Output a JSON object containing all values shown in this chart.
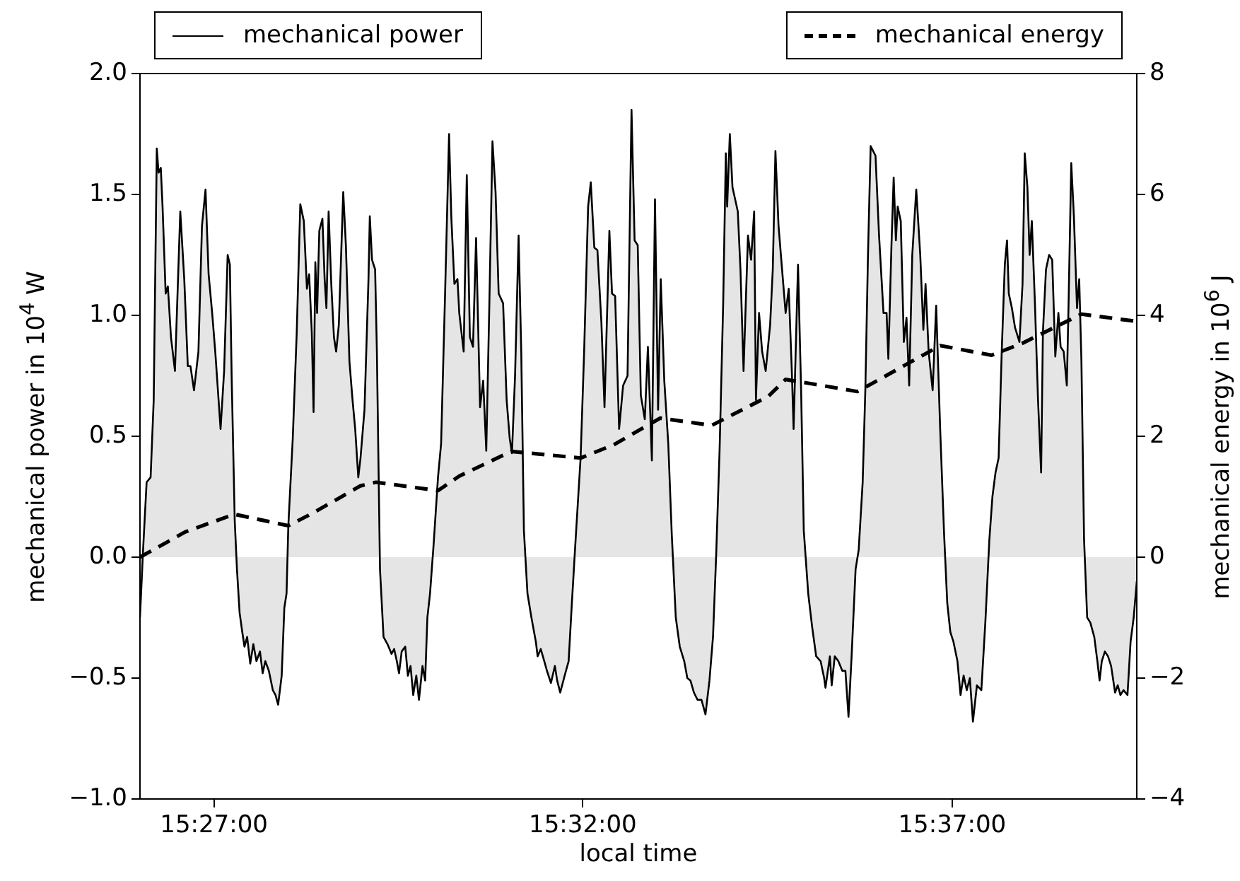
{
  "chart_data": {
    "type": "area",
    "xlabel": "local time",
    "ylabel": "mechanical power in 10$^{4}$ W",
    "y2label": "mechanical energy in 10$^{6}$ J",
    "legend": "top",
    "xlim": [
      15.4333,
      15.6584
    ],
    "xticks": [
      {
        "value": 15.45,
        "label": "15:27:00"
      },
      {
        "value": 15.5333,
        "label": "15:32:00"
      },
      {
        "value": 15.6167,
        "label": "15:37:00"
      }
    ],
    "ylim": [
      -1,
      2
    ],
    "yticks": [
      {
        "value": -1,
        "label": "−1.0"
      },
      {
        "value": -0.5,
        "label": "−0.5"
      },
      {
        "value": 0,
        "label": "0.0"
      },
      {
        "value": 0.5,
        "label": "0.5"
      },
      {
        "value": 1,
        "label": "1.0"
      },
      {
        "value": 1.5,
        "label": "1.5"
      },
      {
        "value": 2,
        "label": "2.0"
      }
    ],
    "y2lim": [
      -4,
      8
    ],
    "y2ticks": [
      {
        "value": -4,
        "label": "−4"
      },
      {
        "value": -2,
        "label": "−2"
      },
      0,
      2,
      4,
      6,
      8
    ],
    "series": [
      {
        "name": "mechanical power",
        "color": "#000000",
        "line_style": "solid",
        "x": [
          15.4333,
          15.434,
          15.4348,
          15.4357,
          15.4364,
          15.4371,
          15.4375,
          15.438,
          15.4384,
          15.4391,
          15.4396,
          15.4403,
          15.4412,
          15.4424,
          15.4433,
          15.4441,
          15.4447,
          15.4455,
          15.4465,
          15.4473,
          15.4481,
          15.4488,
          15.4496,
          15.4503,
          15.4509,
          15.4515,
          15.4523,
          15.4531,
          15.4536,
          15.454,
          15.4547,
          15.4552,
          15.4558,
          15.4564,
          15.4569,
          15.4575,
          15.4582,
          15.4589,
          15.4596,
          15.4604,
          15.461,
          15.4616,
          15.4624,
          15.4633,
          15.4639,
          15.4645,
          15.4653,
          15.4659,
          15.4664,
          15.4668,
          15.4678,
          15.4687,
          15.4695,
          15.4703,
          15.471,
          15.4715,
          15.4721,
          15.4725,
          15.4729,
          15.4733,
          15.4738,
          15.4745,
          15.475,
          15.4754,
          15.4759,
          15.4765,
          15.4771,
          15.4776,
          15.4782,
          15.4792,
          15.4798,
          15.4806,
          15.4813,
          15.4819,
          15.4826,
          15.4831,
          15.484,
          15.4849,
          15.4852,
          15.4857,
          15.4864,
          15.4868,
          15.4875,
          15.4883,
          15.4892,
          15.4901,
          15.4907,
          15.4913,
          15.4918,
          15.4924,
          15.4932,
          15.4938,
          15.4944,
          15.495,
          15.4957,
          15.4963,
          15.4971,
          15.4977,
          15.4982,
          15.4988,
          15.4996,
          15.5006,
          15.5013,
          15.5022,
          15.5031,
          15.5036,
          15.5043,
          15.505,
          15.5054,
          15.5064,
          15.5071,
          15.5078,
          15.5085,
          15.5092,
          15.5101,
          15.5108,
          15.5115,
          15.5122,
          15.5129,
          15.5136,
          15.5143,
          15.5153,
          15.5161,
          15.5168,
          15.5173,
          15.518,
          15.5188,
          15.5194,
          15.52,
          15.5208,
          15.5217,
          15.5227,
          15.5231,
          15.5238,
          15.5246,
          15.5252,
          15.5261,
          15.527,
          15.5275,
          15.5282,
          15.5292,
          15.5301,
          15.5308,
          15.5316,
          15.5328,
          15.5336,
          15.5345,
          15.5351,
          15.5359,
          15.5366,
          15.5375,
          15.5382,
          15.5393,
          15.5399,
          15.5406,
          15.5415,
          15.5424,
          15.5434,
          15.5443,
          15.545,
          15.5457,
          15.5464,
          15.5473,
          15.548,
          15.5489,
          15.5496,
          15.5503,
          15.5509,
          15.5517,
          15.5526,
          15.5534,
          15.5543,
          15.5552,
          15.5562,
          15.5569,
          15.5576,
          15.5584,
          15.5592,
          15.5601,
          15.561,
          15.5619,
          15.5627,
          15.5634,
          15.5642,
          15.565,
          15.5656,
          15.5659,
          15.5665,
          15.5671,
          15.5683,
          15.5689,
          15.5696,
          15.5706,
          15.5713,
          15.572,
          15.5724,
          15.5731,
          15.5738,
          15.5746,
          15.5756,
          15.5762,
          15.5768,
          15.5775,
          15.5783,
          15.5791,
          15.5798,
          15.5805,
          15.5809,
          15.5819,
          15.5826,
          15.5832,
          15.5842,
          15.5851,
          15.586,
          15.587,
          15.5878,
          15.5881,
          15.5891,
          15.5895,
          15.5902,
          15.591,
          15.5919,
          15.5926,
          15.5933,
          15.594,
          15.5949,
          15.5956,
          15.5965,
          15.5971,
          15.5977,
          15.5983,
          15.5994,
          15.6002,
          15.6012,
          15.6019,
          15.6023,
          15.603,
          15.6035,
          15.604,
          15.6044,
          15.6051,
          15.6058,
          15.6064,
          15.607,
          15.6077,
          15.6086,
          15.6095,
          15.6102,
          15.6107,
          15.6114,
          15.6123,
          15.6131,
          15.614,
          15.6149,
          15.6156,
          15.6163,
          15.617,
          15.6179,
          15.6186,
          15.6193,
          15.62,
          15.6207,
          15.6214,
          15.6223,
          15.6233,
          15.6242,
          15.6251,
          15.6258,
          15.6265,
          15.6272,
          15.6279,
          15.6286,
          15.6291,
          15.6295,
          15.6302,
          15.6309,
          15.6319,
          15.6326,
          15.6331,
          15.6337,
          15.6342,
          15.6347,
          15.6354,
          15.6361,
          15.6368,
          15.6372,
          15.6379,
          15.6386,
          15.6393,
          15.64,
          15.6407,
          15.6412,
          15.6419,
          15.6426,
          15.643,
          15.6436,
          15.6442,
          15.6449,
          15.6454,
          15.6459,
          15.6465,
          15.6472,
          15.6479,
          15.6488,
          15.6495,
          15.65,
          15.6505,
          15.6512,
          15.6519,
          15.6526,
          15.6535,
          15.6541,
          15.6547,
          15.6554,
          15.6563,
          15.657,
          15.6577,
          15.6584
        ],
        "values": [
          -0.25,
          0.03,
          0.31,
          0.33,
          0.65,
          1.69,
          1.59,
          1.61,
          1.45,
          1.09,
          1.12,
          0.91,
          0.77,
          1.43,
          1.15,
          0.79,
          0.79,
          0.69,
          0.85,
          1.37,
          1.52,
          1.17,
          1.01,
          0.85,
          0.69,
          0.53,
          0.77,
          1.25,
          1.21,
          0.75,
          0.15,
          -0.05,
          -0.23,
          -0.31,
          -0.37,
          -0.33,
          -0.44,
          -0.36,
          -0.43,
          -0.39,
          -0.48,
          -0.43,
          -0.47,
          -0.55,
          -0.57,
          -0.61,
          -0.49,
          -0.21,
          -0.15,
          0.13,
          0.49,
          0.93,
          1.46,
          1.39,
          1.11,
          1.17,
          0.93,
          0.6,
          1.22,
          1.01,
          1.35,
          1.4,
          1.15,
          1.03,
          1.43,
          1.13,
          0.91,
          0.85,
          0.96,
          1.51,
          1.29,
          0.81,
          0.65,
          0.53,
          0.33,
          0.41,
          0.61,
          1.15,
          1.41,
          1.23,
          1.19,
          0.85,
          -0.05,
          -0.33,
          -0.36,
          -0.4,
          -0.38,
          -0.43,
          -0.48,
          -0.39,
          -0.37,
          -0.49,
          -0.45,
          -0.57,
          -0.49,
          -0.59,
          -0.45,
          -0.51,
          -0.25,
          -0.15,
          0.05,
          0.33,
          0.47,
          1.09,
          1.75,
          1.41,
          1.13,
          1.15,
          1.01,
          0.85,
          1.58,
          0.91,
          0.87,
          1.32,
          0.62,
          0.73,
          0.44,
          1.05,
          1.72,
          1.51,
          1.09,
          1.05,
          0.65,
          0.49,
          0.43,
          0.75,
          1.33,
          0.85,
          0.11,
          -0.15,
          -0.25,
          -0.35,
          -0.41,
          -0.38,
          -0.43,
          -0.47,
          -0.52,
          -0.45,
          -0.51,
          -0.56,
          -0.49,
          -0.43,
          -0.2,
          0.05,
          0.41,
          0.85,
          1.45,
          1.55,
          1.28,
          1.27,
          0.97,
          0.62,
          1.35,
          1.09,
          1.08,
          0.53,
          0.71,
          0.75,
          1.85,
          1.31,
          1.29,
          0.67,
          0.57,
          0.87,
          0.4,
          1.48,
          0.61,
          1.15,
          0.73,
          0.47,
          0.09,
          -0.25,
          -0.37,
          -0.43,
          -0.5,
          -0.51,
          -0.56,
          -0.59,
          -0.59,
          -0.65,
          -0.51,
          -0.33,
          0,
          0.45,
          1.05,
          1.67,
          1.45,
          1.75,
          1.53,
          1.43,
          1.19,
          0.77,
          1.33,
          1.23,
          1.43,
          0.65,
          1.01,
          0.85,
          0.77,
          0.96,
          1.19,
          1.68,
          1.37,
          1.19,
          1.01,
          1.11,
          0.77,
          0.53,
          1.21,
          0.69,
          0.11,
          -0.15,
          -0.29,
          -0.41,
          -0.43,
          -0.5,
          -0.54,
          -0.41,
          -0.53,
          -0.41,
          -0.43,
          -0.47,
          -0.47,
          -0.66,
          -0.41,
          -0.05,
          0.03,
          0.31,
          0.69,
          1.25,
          1.7,
          1.66,
          1.33,
          1.01,
          1.01,
          0.82,
          1.29,
          1.57,
          1.31,
          1.45,
          1.39,
          0.89,
          0.99,
          0.71,
          1.25,
          1.52,
          1.25,
          0.94,
          1.13,
          0.85,
          0.69,
          1.04,
          0.53,
          0.09,
          -0.19,
          -0.31,
          -0.35,
          -0.43,
          -0.57,
          -0.49,
          -0.55,
          -0.5,
          -0.68,
          -0.53,
          -0.55,
          -0.27,
          0.07,
          0.25,
          0.35,
          0.41,
          0.85,
          1.21,
          1.31,
          1.09,
          1.03,
          0.95,
          0.89,
          1.13,
          1.67,
          1.53,
          1.25,
          1.39,
          1.05,
          0.65,
          0.35,
          0.93,
          1.19,
          1.25,
          1.23,
          0.83,
          1.01,
          0.87,
          0.85,
          0.71,
          1.05,
          1.63,
          1.41,
          1.03,
          1.15,
          0.81,
          0.07,
          -0.25,
          -0.27,
          -0.33,
          -0.43,
          -0.51,
          -0.43,
          -0.39,
          -0.41,
          -0.45,
          -0.56,
          -0.53,
          -0.57,
          -0.55,
          -0.57,
          -0.35,
          -0.25,
          -0.1
        ]
      },
      {
        "name": "mechanical energy",
        "type": "line",
        "color": "#000000",
        "line_style": "dashed",
        "axis": "y2",
        "x": [
          15.4333,
          15.4436,
          15.4546,
          15.4668,
          15.4726,
          15.4831,
          15.4866,
          15.5006,
          15.5054,
          15.5171,
          15.5328,
          15.5403,
          15.5508,
          15.5624,
          15.5752,
          15.5791,
          15.5953,
          15.5983,
          15.614,
          15.6256,
          15.6326,
          15.6459,
          15.6584
        ],
        "values": [
          0,
          0.42,
          0.71,
          0.52,
          0.74,
          1.18,
          1.24,
          1.1,
          1.34,
          1.75,
          1.64,
          1.86,
          2.3,
          2.18,
          2.66,
          2.94,
          2.74,
          2.86,
          3.5,
          3.34,
          3.54,
          4.02,
          3.9
        ]
      }
    ]
  }
}
